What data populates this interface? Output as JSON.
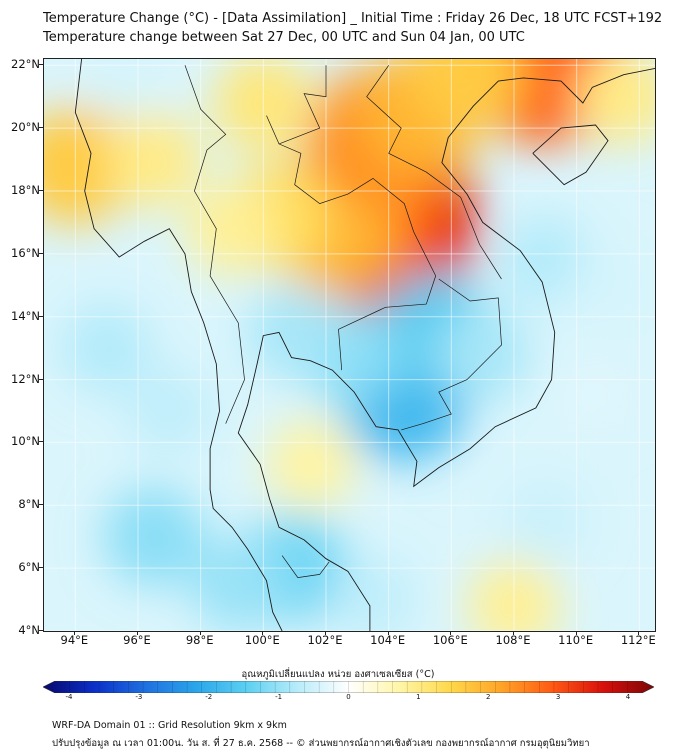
{
  "header": {
    "title_line1": "Temperature Change (°C) - [Data Assimilation] _ Initial Time : Friday 26 Dec, 18 UTC FCST+192",
    "title_line2": "Temperature change between Sat 27 Dec, 00 UTC and Sun 04 Jan, 00 UTC"
  },
  "map": {
    "lat_labels": [
      "22°N",
      "20°N",
      "18°N",
      "16°N",
      "14°N",
      "12°N",
      "10°N",
      "8°N",
      "6°N",
      "4°N"
    ],
    "lon_labels": [
      "94°E",
      "96°E",
      "98°E",
      "100°E",
      "102°E",
      "104°E",
      "106°E",
      "108°E",
      "110°E",
      "112°E"
    ],
    "extent": {
      "lon_min": 93.0,
      "lon_max": 112.5,
      "lat_min": 4.0,
      "lat_max": 22.2
    },
    "anomaly_cells": [
      {
        "lon": 104.0,
        "lat": 17.0,
        "value": 3.2
      },
      {
        "lon": 103.3,
        "lat": 17.6,
        "value": 2.6
      },
      {
        "lon": 102.3,
        "lat": 16.8,
        "value": 1.8
      },
      {
        "lon": 100.5,
        "lat": 17.2,
        "value": 1.2
      },
      {
        "lon": 99.0,
        "lat": 16.8,
        "value": 0.8
      },
      {
        "lon": 103.8,
        "lat": 19.7,
        "value": 2.2
      },
      {
        "lon": 105.0,
        "lat": 20.5,
        "value": 1.8
      },
      {
        "lon": 109.0,
        "lat": 22.0,
        "value": 2.6
      },
      {
        "lon": 106.5,
        "lat": 21.8,
        "value": 1.5
      },
      {
        "lon": 94.0,
        "lat": 18.8,
        "value": 1.5
      },
      {
        "lon": 96.5,
        "lat": 19.0,
        "value": 0.9
      },
      {
        "lon": 100.0,
        "lat": 20.8,
        "value": 1.0
      },
      {
        "lon": 111.5,
        "lat": 21.0,
        "value": 0.9
      },
      {
        "lon": 110.5,
        "lat": 11.5,
        "value": -0.3
      },
      {
        "lon": 108.0,
        "lat": 4.8,
        "value": 0.8
      },
      {
        "lon": 101.5,
        "lat": 9.3,
        "value": 0.7
      },
      {
        "lon": 104.5,
        "lat": 11.4,
        "value": -1.7
      },
      {
        "lon": 105.5,
        "lat": 13.6,
        "value": -1.4
      },
      {
        "lon": 102.8,
        "lat": 12.8,
        "value": -1.0
      },
      {
        "lon": 101.0,
        "lat": 13.5,
        "value": -0.8
      },
      {
        "lon": 107.0,
        "lat": 12.8,
        "value": -0.8
      },
      {
        "lon": 101.0,
        "lat": 6.0,
        "value": -1.2
      },
      {
        "lon": 99.2,
        "lat": 5.5,
        "value": -0.9
      },
      {
        "lon": 96.5,
        "lat": 7.0,
        "value": -1.0
      },
      {
        "lon": 95.0,
        "lat": 13.0,
        "value": -0.7
      },
      {
        "lon": 97.0,
        "lat": 11.0,
        "value": -0.6
      },
      {
        "lon": 109.0,
        "lat": 15.8,
        "value": -0.7
      },
      {
        "lon": 109.0,
        "lat": 7.5,
        "value": -0.5
      },
      {
        "lon": 95.5,
        "lat": 21.5,
        "value": -0.4
      },
      {
        "lon": 103.5,
        "lat": 5.0,
        "value": -0.6
      },
      {
        "lon": 111.0,
        "lat": 15.0,
        "value": -0.4
      }
    ]
  },
  "colorbar": {
    "label": "อุณหภูมิเปลี่ยนแปลง หน่วย องศาเซลเซียส (°C)",
    "min": -4,
    "max": 4,
    "ticks": [
      "-4",
      "-3",
      "-2",
      "-1",
      "0",
      "1",
      "2",
      "3",
      "4"
    ],
    "colors": [
      "#08086b",
      "#0a2fc7",
      "#1f6fe0",
      "#2aa5ea",
      "#5cd0f2",
      "#b8ecfa",
      "#ffffff",
      "#fff6a8",
      "#ffd84a",
      "#ffa428",
      "#ff5a14",
      "#d8100c",
      "#7a0606"
    ]
  },
  "footer": {
    "line1": "WRF-DA Domain 01 :: Grid Resolution 9km x 9km",
    "line2": "ปรับปรุงข้อมูล ณ เวลา 01:00น. วัน ส. ที่ 27 ธ.ค. 2568 -- © ส่วนพยากรณ์อากาศเชิงตัวเลข กองพยากรณ์อากาศ กรมอุตุนิยมวิทยา"
  }
}
